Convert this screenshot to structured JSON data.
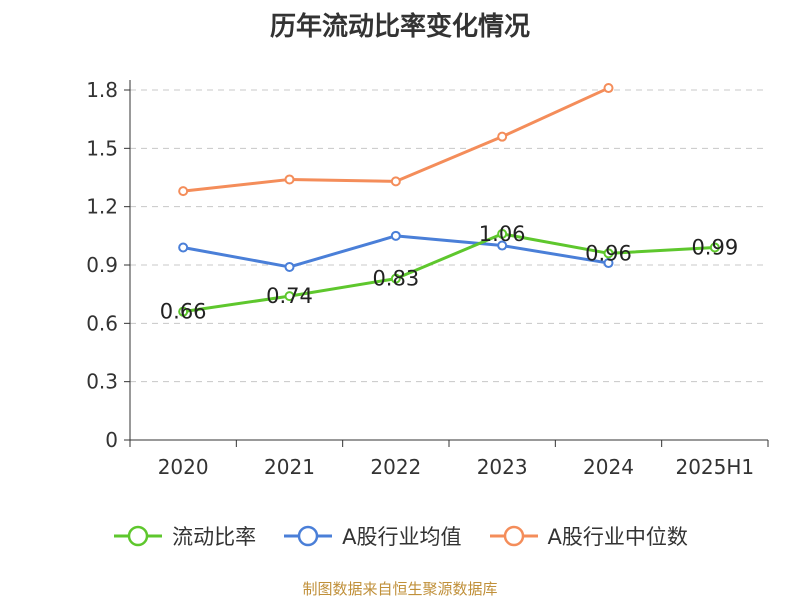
{
  "title": "历年流动比率变化情况",
  "source": "制图数据来自恒生聚源数据库",
  "chart_data": {
    "type": "line",
    "categories": [
      "2020",
      "2021",
      "2022",
      "2023",
      "2024",
      "2025H1"
    ],
    "ylim": [
      0,
      1.8
    ],
    "yticks": [
      "0",
      "0.3",
      "0.6",
      "0.9",
      "1.2",
      "1.5",
      "1.8"
    ],
    "grid": true,
    "legend_position": "bottom",
    "series": [
      {
        "name": "流动比率",
        "color": "#5ec72d",
        "values": [
          0.66,
          0.74,
          0.83,
          1.06,
          0.96,
          0.99
        ],
        "labels": [
          "0.66",
          "0.74",
          "0.83",
          "1.06",
          "0.96",
          "0.99"
        ]
      },
      {
        "name": "A股行业均值",
        "color": "#4a7fd8",
        "values": [
          0.99,
          0.89,
          1.05,
          1.0,
          0.91,
          null
        ]
      },
      {
        "name": "A股行业中位数",
        "color": "#f48d5a",
        "values": [
          1.28,
          1.34,
          1.33,
          1.56,
          1.81,
          null
        ]
      }
    ]
  }
}
